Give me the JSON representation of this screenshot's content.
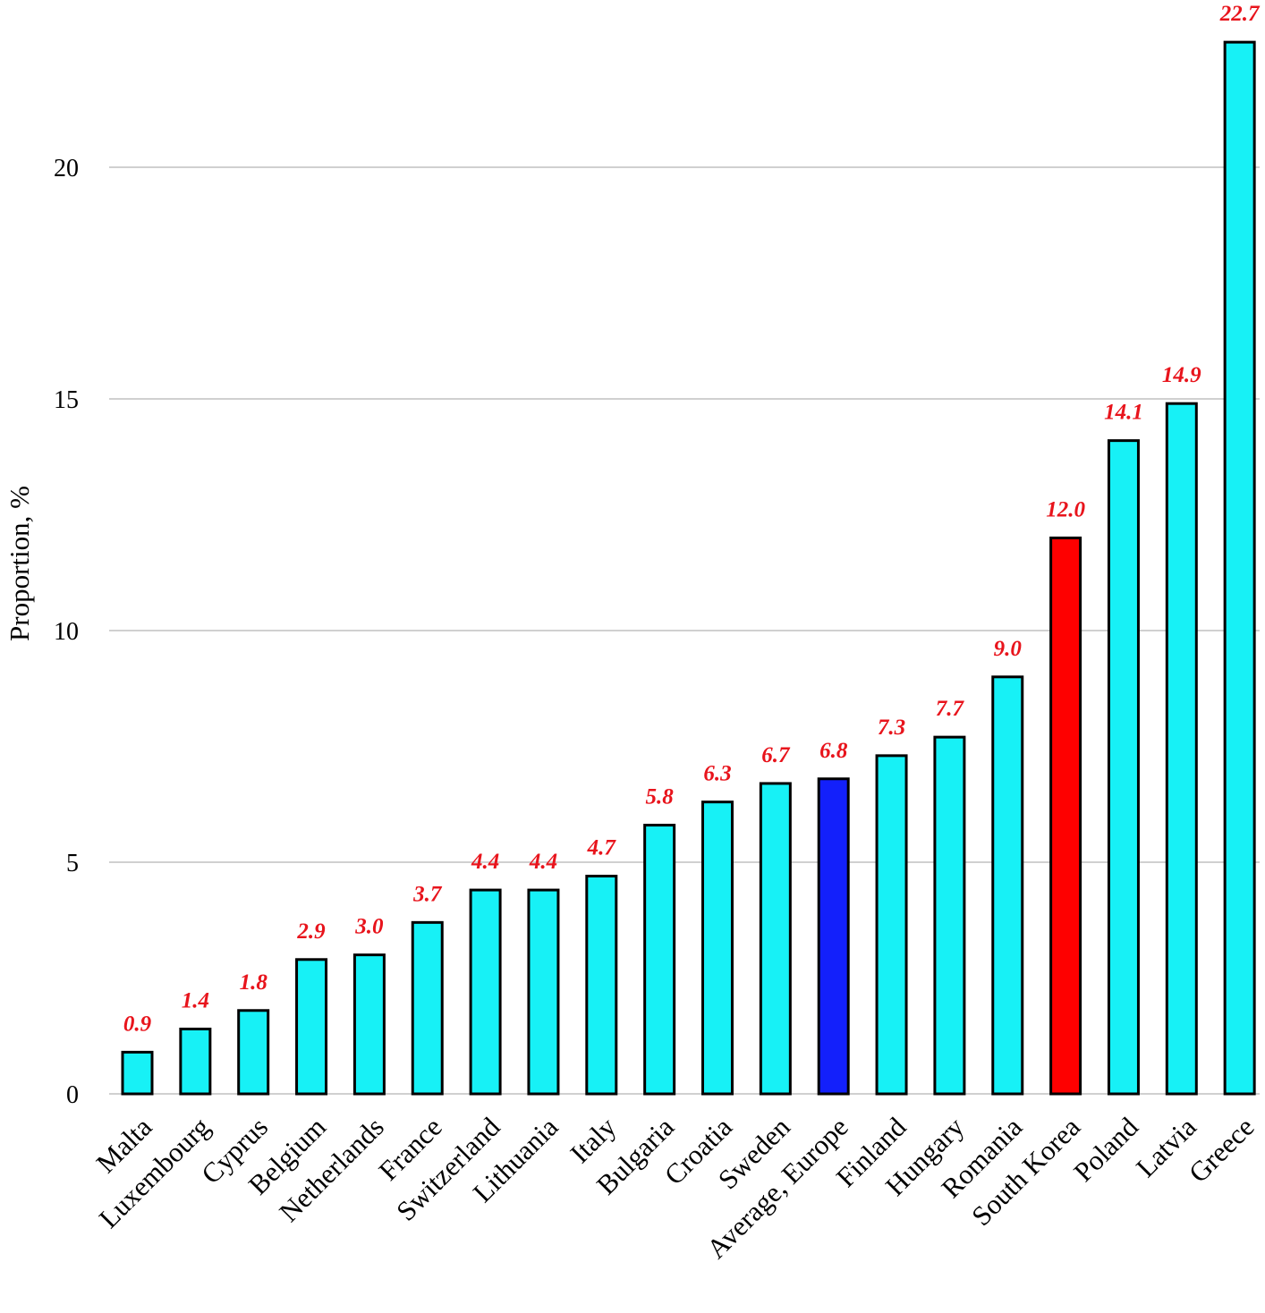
{
  "chart_data": {
    "type": "bar",
    "title": "",
    "xlabel": "",
    "ylabel": "Proportion, %",
    "ylim": [
      0,
      22.7
    ],
    "yticks": [
      0,
      5,
      10,
      15,
      20
    ],
    "grid": true,
    "legend": "none",
    "categories": [
      "Malta",
      "Luxembourg",
      "Cyprus",
      "Belgium",
      "Netherlands",
      "France",
      "Switzerland",
      "Lithuania",
      "Italy",
      "Bulgaria",
      "Croatia",
      "Sweden",
      "Average, Europe",
      "Finland",
      "Hungary",
      "Romania",
      "South Korea",
      "Poland",
      "Latvia",
      "Greece"
    ],
    "values": [
      0.9,
      1.4,
      1.8,
      2.9,
      3.0,
      3.7,
      4.4,
      4.4,
      4.7,
      5.8,
      6.3,
      6.7,
      6.8,
      7.3,
      7.7,
      9.0,
      12.0,
      14.1,
      14.9,
      22.7
    ],
    "value_labels": [
      "0.9",
      "1.4",
      "1.8",
      "2.9",
      "3.0",
      "3.7",
      "4.4",
      "4.4",
      "4.7",
      "5.8",
      "6.3",
      "6.7",
      "6.8",
      "7.3",
      "7.7",
      "9.0",
      "12.0",
      "14.1",
      "14.9",
      "22.7"
    ],
    "colors": {
      "default_bar": "#17f1f6",
      "highlight_average": "#1320fb",
      "highlight_korea": "#fe0000",
      "bar_outline": "#000000",
      "value_label": "#e8141c",
      "gridline": "#d0d0d0"
    },
    "bar_colors": {
      "Average, Europe": "#1320fb",
      "South Korea": "#fe0000"
    }
  }
}
